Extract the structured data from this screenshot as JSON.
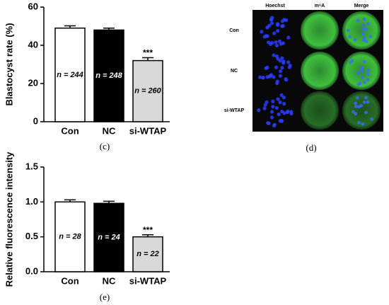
{
  "chart_data": [
    {
      "type": "bar",
      "panel_label": "(c)",
      "ylabel": "Blastocyst rate (%)",
      "categories": [
        "Con",
        "NC",
        "si-WTAP"
      ],
      "values": [
        49,
        48,
        32
      ],
      "errors": [
        1.2,
        1.0,
        1.5
      ],
      "colors": [
        "#ffffff",
        "#000000",
        "#d9d9d9"
      ],
      "bar_notes": [
        "n = 244",
        "n = 248",
        "n = 260"
      ],
      "stars": [
        null,
        null,
        "***"
      ],
      "ylim": [
        0,
        60
      ],
      "yticks": [
        0,
        20,
        40,
        60
      ]
    },
    {
      "type": "bar",
      "panel_label": "(e)",
      "ylabel": "Relative fluorescence intensity",
      "categories": [
        "Con",
        "NC",
        "si-WTAP"
      ],
      "values": [
        1.0,
        0.98,
        0.5
      ],
      "errors": [
        0.03,
        0.03,
        0.03
      ],
      "colors": [
        "#ffffff",
        "#000000",
        "#d9d9d9"
      ],
      "bar_notes": [
        "n = 28",
        "n = 24",
        "n = 22"
      ],
      "stars": [
        null,
        null,
        "***"
      ],
      "ylim": [
        0,
        1.5
      ],
      "yticks": [
        {
          "value": 0,
          "label": "0.0"
        },
        {
          "value": 0.5,
          "label": "0.5"
        },
        {
          "value": 1,
          "label": "1.0"
        },
        {
          "value": 1.5,
          "label": "1.5"
        }
      ]
    }
  ],
  "image_panel": {
    "panel_label": "(d)",
    "columns": [
      "Hoechst",
      "m⁶A",
      "Merge"
    ],
    "rows": [
      "Con",
      "NC",
      "si-WTAP"
    ]
  }
}
